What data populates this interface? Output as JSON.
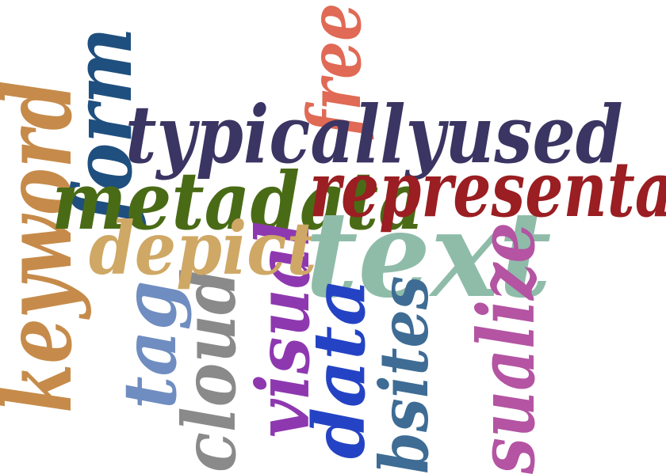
{
  "words": [
    {
      "id": "keyword",
      "text": "keyword",
      "color": "#c68b4a"
    },
    {
      "id": "tag",
      "text": "tag",
      "color": "#6f8dc0"
    },
    {
      "id": "cloud",
      "text": "cloud",
      "color": "#8a8a8a"
    },
    {
      "id": "form",
      "text": "form",
      "color": "#1f4f7e"
    },
    {
      "id": "free",
      "text": "free",
      "color": "#e06a55"
    },
    {
      "id": "metadata",
      "text": "metadata",
      "color": "#4a6b16"
    },
    {
      "id": "typicallyused",
      "text": "typicallyused",
      "color": "#3b3563"
    },
    {
      "id": "visual",
      "text": "visual",
      "color": "#8e38b0"
    },
    {
      "id": "depict",
      "text": "depict",
      "color": "#cfa865"
    },
    {
      "id": "text",
      "text": "text",
      "color": "#8fbca9"
    },
    {
      "id": "represent",
      "text": "representa",
      "color": "#9a1e22"
    },
    {
      "id": "data",
      "text": "data",
      "color": "#2443c4"
    },
    {
      "id": "websites",
      "text": "bsites",
      "color": "#3e6c94"
    },
    {
      "id": "visualize",
      "text": "sualize",
      "color": "#b454a2"
    }
  ]
}
